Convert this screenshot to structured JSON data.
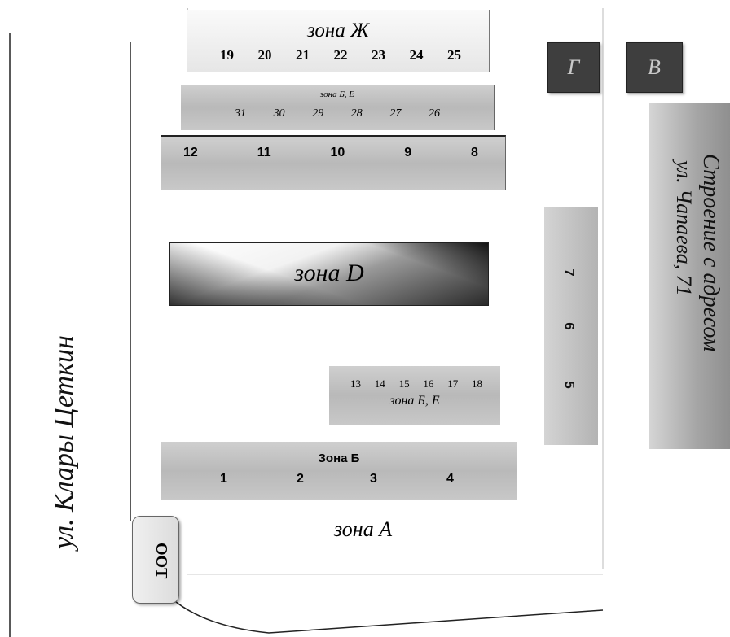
{
  "street": {
    "left_label": "ул. Клары Цеткин"
  },
  "zone_zh": {
    "title": "зона Ж",
    "numbers": [
      "19",
      "20",
      "21",
      "22",
      "23",
      "24",
      "25"
    ]
  },
  "zone_be_top": {
    "title": "зона Б, Е",
    "numbers": [
      "31",
      "30",
      "29",
      "28",
      "27",
      "26"
    ]
  },
  "row_12_8": {
    "numbers": [
      "12",
      "11",
      "10",
      "9",
      "8"
    ]
  },
  "zone_d": {
    "title": "зона D"
  },
  "zone_be_mid": {
    "title": "зона Б, Е",
    "numbers": [
      "13",
      "14",
      "15",
      "16",
      "17",
      "18"
    ]
  },
  "zone_b": {
    "title": "Зона Б",
    "numbers": [
      "1",
      "2",
      "3",
      "4"
    ]
  },
  "zone_a": {
    "title": "зона A"
  },
  "squares": {
    "g": "Г",
    "v": "В"
  },
  "right_column": {
    "numbers": [
      "7",
      "6",
      "5"
    ]
  },
  "building": {
    "line1": "Строение с адресом",
    "line2": "ул. Чапаева, 71"
  },
  "stop": {
    "label": "ООТ"
  },
  "colors": {
    "block": "#bfbfbf",
    "dark": "#3e3e3e",
    "line": "#222222"
  }
}
